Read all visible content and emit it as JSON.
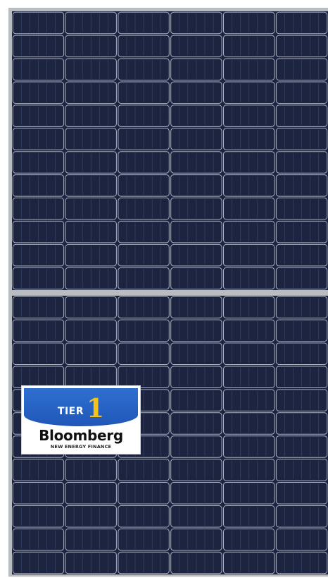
{
  "image": {
    "subject": "solar-panel",
    "colors": {
      "background": "#ffffff",
      "frame": "#b9bdc2",
      "cell": "#1d2440",
      "gridline": "#a9b0c0"
    }
  },
  "badge": {
    "tier_label": "TIER",
    "tier_number": "1",
    "brand": "Bloomberg",
    "subtitle": "NEW ENERGY FINANCE",
    "colors": {
      "banner": "#2466c9",
      "number": "#f3c31b",
      "text": "#111111"
    }
  }
}
